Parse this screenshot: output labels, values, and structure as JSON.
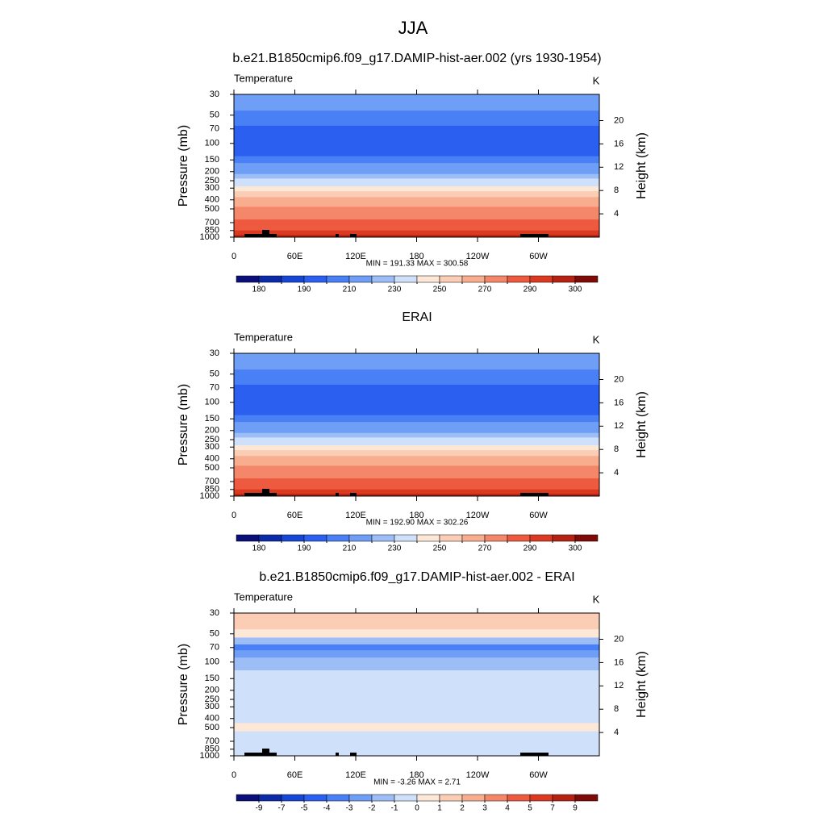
{
  "title": "JJA",
  "chart_data": [
    {
      "type": "contour",
      "title": "b.e21.B1850cmip6.f09_g17.DAMIP-hist-aer.002 (yrs 1930-1954)",
      "variable": "Temperature",
      "units": "K",
      "ylabel": "Pressure (mb)",
      "y2label": "Height (km)",
      "xlim": [
        0,
        360
      ],
      "xticks": [
        0,
        {
          "value": 60,
          "label": "60E"
        },
        {
          "value": 120,
          "label": "120E"
        },
        180,
        {
          "value": 240,
          "label": "120W"
        },
        {
          "value": 300,
          "label": "60W"
        }
      ],
      "ylim": [
        1000,
        30
      ],
      "ylog": true,
      "yticks": [
        30,
        50,
        70,
        100,
        150,
        200,
        250,
        300,
        400,
        500,
        700,
        850,
        1000
      ],
      "y2lim": [
        0,
        24.5
      ],
      "y2ticks": [
        4,
        8,
        12,
        16,
        20
      ],
      "stats": "MIN = 191.33  MAX = 300.58",
      "profile": {
        "pressure": [
          30,
          40,
          50,
          60,
          70,
          85,
          100,
          125,
          150,
          175,
          200,
          225,
          250,
          275,
          300,
          350,
          400,
          450,
          500,
          600,
          700,
          800,
          900,
          1000
        ],
        "values": [
          215,
          212,
          207,
          203,
          199,
          197,
          197,
          198,
          204,
          212,
          218,
          225,
          232,
          238,
          245,
          252,
          260,
          266,
          272,
          278,
          284,
          288,
          292,
          296
        ]
      },
      "colorbar": {
        "levels": [
          180,
          185,
          190,
          200,
          210,
          220,
          230,
          240,
          250,
          260,
          270,
          280,
          290,
          295,
          300
        ],
        "labels": [
          180,
          190,
          210,
          230,
          250,
          270,
          290,
          300
        ],
        "colors": [
          "#0a0f7a",
          "#0a2aa8",
          "#1546d6",
          "#2a5ff0",
          "#4a80f5",
          "#6f9ef6",
          "#9dbdf7",
          "#cfe0fa",
          "#fde8d8",
          "#fbcdb4",
          "#f8ad8e",
          "#f4876a",
          "#ed5a3f",
          "#dc3a20",
          "#b52212",
          "#7f0b08"
        ]
      }
    },
    {
      "type": "contour",
      "title": "ERAI",
      "variable": "Temperature",
      "units": "K",
      "ylabel": "Pressure (mb)",
      "y2label": "Height (km)",
      "xlim": [
        0,
        360
      ],
      "xticks": [
        0,
        {
          "value": 60,
          "label": "60E"
        },
        {
          "value": 120,
          "label": "120E"
        },
        180,
        {
          "value": 240,
          "label": "120W"
        },
        {
          "value": 300,
          "label": "60W"
        }
      ],
      "ylim": [
        1000,
        30
      ],
      "ylog": true,
      "yticks": [
        30,
        50,
        70,
        100,
        150,
        200,
        250,
        300,
        400,
        500,
        700,
        850,
        1000
      ],
      "y2lim": [
        0,
        24.5
      ],
      "y2ticks": [
        4,
        8,
        12,
        16,
        20
      ],
      "stats": "MIN = 192.90  MAX = 302.26",
      "profile": {
        "pressure": [
          30,
          40,
          50,
          60,
          70,
          85,
          100,
          125,
          150,
          175,
          200,
          225,
          250,
          275,
          300,
          350,
          400,
          450,
          500,
          600,
          700,
          800,
          900,
          1000
        ],
        "values": [
          214,
          212,
          208,
          204,
          199,
          197,
          197,
          199,
          205,
          213,
          219,
          226,
          233,
          239,
          246,
          253,
          261,
          267,
          273,
          279,
          285,
          289,
          293,
          297
        ]
      },
      "colorbar": {
        "levels": [
          180,
          185,
          190,
          200,
          210,
          220,
          230,
          240,
          250,
          260,
          270,
          280,
          290,
          295,
          300
        ],
        "labels": [
          180,
          190,
          210,
          230,
          250,
          270,
          290,
          300
        ],
        "colors": [
          "#0a0f7a",
          "#0a2aa8",
          "#1546d6",
          "#2a5ff0",
          "#4a80f5",
          "#6f9ef6",
          "#9dbdf7",
          "#cfe0fa",
          "#fde8d8",
          "#fbcdb4",
          "#f8ad8e",
          "#f4876a",
          "#ed5a3f",
          "#dc3a20",
          "#b52212",
          "#7f0b08"
        ]
      }
    },
    {
      "type": "contour",
      "title": "b.e21.B1850cmip6.f09_g17.DAMIP-hist-aer.002 - ERAI",
      "variable": "Temperature",
      "units": "K",
      "ylabel": "Pressure (mb)",
      "y2label": "Height (km)",
      "xlim": [
        0,
        360
      ],
      "xticks": [
        0,
        {
          "value": 60,
          "label": "60E"
        },
        {
          "value": 120,
          "label": "120E"
        },
        180,
        {
          "value": 240,
          "label": "120W"
        },
        {
          "value": 300,
          "label": "60W"
        }
      ],
      "ylim": [
        1000,
        30
      ],
      "ylog": true,
      "yticks": [
        30,
        50,
        70,
        100,
        150,
        200,
        250,
        300,
        400,
        500,
        700,
        850,
        1000
      ],
      "y2lim": [
        0,
        24.5
      ],
      "y2ticks": [
        4,
        8,
        12,
        16,
        20
      ],
      "stats": "MIN =  -3.26  MAX =   2.71",
      "profile": {
        "pressure": [
          30,
          40,
          50,
          60,
          70,
          80,
          100,
          150,
          200,
          300,
          400,
          500,
          600,
          700,
          850,
          1000
        ],
        "values": [
          1.5,
          1.5,
          0.5,
          -1.5,
          -3.5,
          -2.5,
          -1.5,
          -0.5,
          -0.5,
          -0.5,
          -0.5,
          0.2,
          -0.5,
          -0.5,
          -0.5,
          -0.5
        ]
      },
      "colorbar": {
        "levels": [
          -9,
          -7,
          -5,
          -4,
          -3,
          -2,
          -1,
          0,
          1,
          2,
          3,
          4,
          5,
          7,
          9
        ],
        "labels": [
          -9,
          -7,
          -5,
          -4,
          -3,
          -2,
          -1,
          0,
          1,
          2,
          3,
          4,
          5,
          7,
          9
        ],
        "colors": [
          "#0a0f7a",
          "#0a2aa8",
          "#1546d6",
          "#2a5ff0",
          "#4a80f5",
          "#6f9ef6",
          "#9dbdf7",
          "#cfe0fa",
          "#fde8d8",
          "#fbcdb4",
          "#f8ad8e",
          "#f4876a",
          "#ed5a3f",
          "#dc3a20",
          "#b52212",
          "#7f0b08"
        ]
      }
    }
  ]
}
